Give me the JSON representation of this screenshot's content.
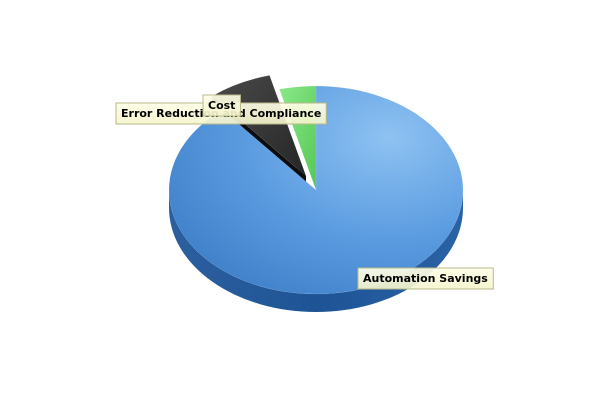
{
  "chart_data": {
    "type": "pie",
    "style": "3d-exploded",
    "slices": [
      {
        "label": "Automation Savings",
        "value": 89,
        "color": "#4a90d9",
        "explode": false
      },
      {
        "label": "Cost",
        "value": 7,
        "color": "#333333",
        "explode": true
      },
      {
        "label": "Error Reduction and Compliance",
        "value": 4,
        "color": "#6fdc6f",
        "explode": false
      }
    ],
    "legend": "none",
    "title": ""
  }
}
